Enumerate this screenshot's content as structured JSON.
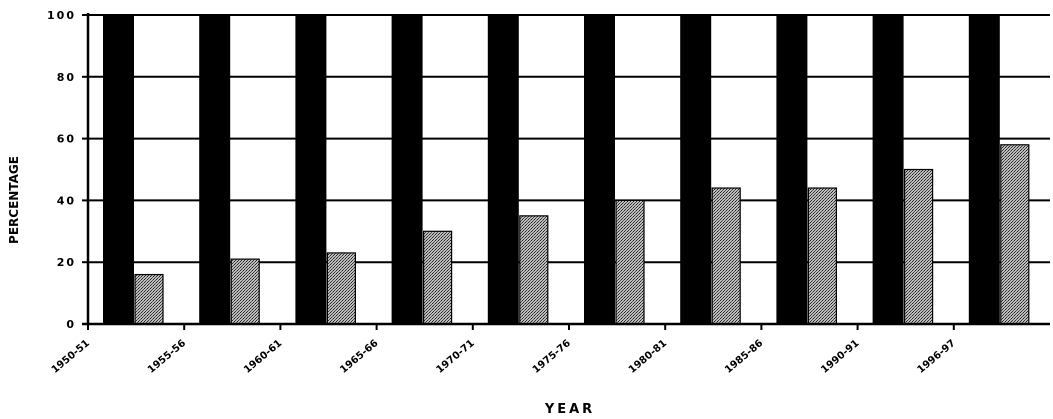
{
  "chart_data": {
    "type": "bar",
    "title": "",
    "xlabel": "YEAR",
    "ylabel": "PERCENTAGE",
    "ylim": [
      0,
      100
    ],
    "yticks": [
      0,
      20,
      40,
      60,
      80,
      100
    ],
    "ytick_labels": [
      "0",
      "20",
      "40",
      "60",
      "80",
      "100"
    ],
    "grid": true,
    "legend": "none",
    "categories": [
      "1950-51",
      "1955-56",
      "1960-61",
      "1965-66",
      "1970-71",
      "1975-76",
      "1980-81",
      "1985-86",
      "1990-91",
      "1996-97"
    ],
    "series": [
      {
        "values": [
          100,
          100,
          100,
          100,
          100,
          100,
          100,
          100,
          100,
          100
        ],
        "color": "#000000"
      },
      {
        "values": [
          16,
          21,
          23,
          30,
          35,
          40,
          44,
          44,
          50,
          58
        ],
        "color": "#9a9a9a",
        "pattern": "dotted"
      }
    ]
  }
}
